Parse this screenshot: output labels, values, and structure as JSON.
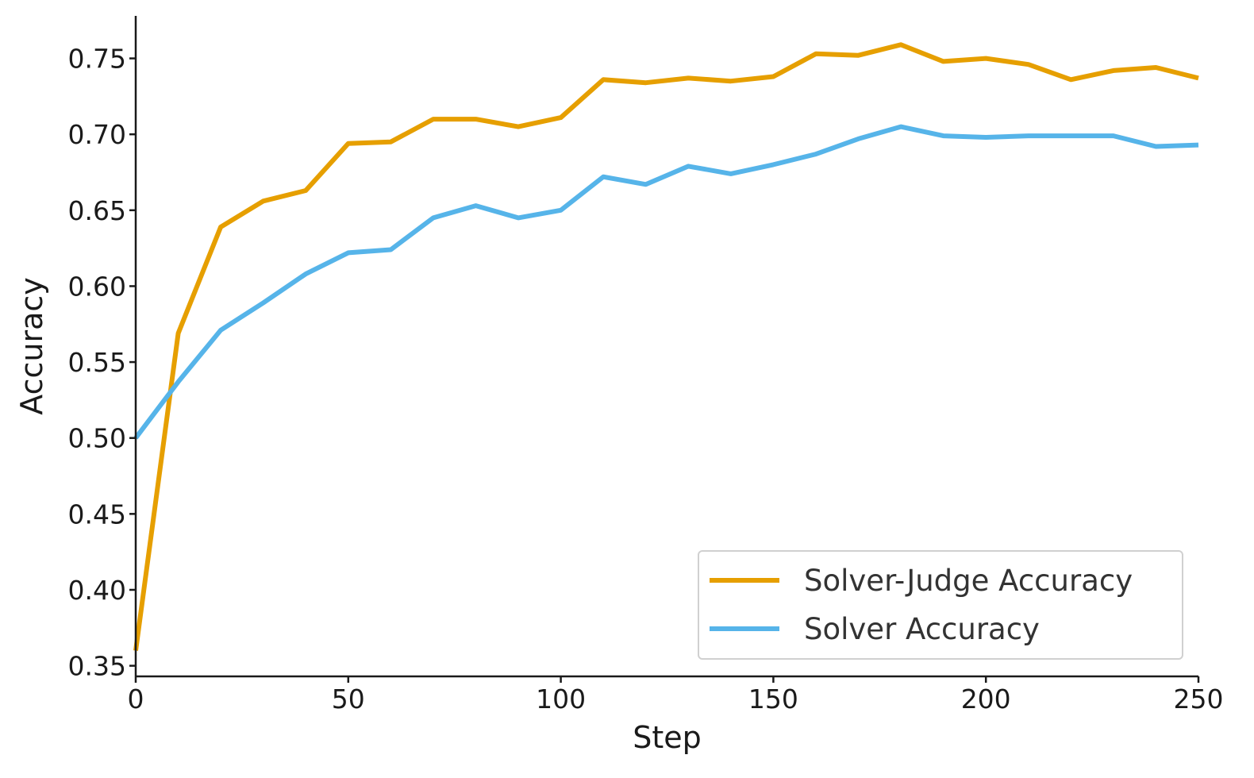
{
  "chart_data": {
    "type": "line",
    "title": "",
    "xlabel": "Step",
    "ylabel": "Accuracy",
    "xlim": [
      0,
      250
    ],
    "ylim": [
      0.343,
      0.778
    ],
    "xticks": [
      0,
      50,
      100,
      150,
      200,
      250
    ],
    "yticks": [
      0.35,
      0.4,
      0.45,
      0.5,
      0.55,
      0.6,
      0.65,
      0.7,
      0.75
    ],
    "ytick_labels": [
      "0.35",
      "0.40",
      "0.45",
      "0.50",
      "0.55",
      "0.60",
      "0.65",
      "0.70",
      "0.75"
    ],
    "grid": false,
    "legend_position": "lower-right",
    "x": [
      0,
      10,
      20,
      30,
      40,
      50,
      60,
      70,
      80,
      90,
      100,
      110,
      120,
      130,
      140,
      150,
      160,
      170,
      180,
      190,
      200,
      210,
      220,
      230,
      240,
      250
    ],
    "series": [
      {
        "name": "Solver-Judge Accuracy",
        "color": "#E69F00",
        "values": [
          0.36,
          0.569,
          0.639,
          0.656,
          0.663,
          0.694,
          0.695,
          0.71,
          0.71,
          0.705,
          0.711,
          0.736,
          0.734,
          0.737,
          0.735,
          0.738,
          0.753,
          0.752,
          0.759,
          0.748,
          0.75,
          0.746,
          0.736,
          0.742,
          0.744,
          0.737
        ]
      },
      {
        "name": "Solver Accuracy",
        "color": "#56B4E9",
        "values": [
          0.5,
          0.537,
          0.571,
          0.589,
          0.608,
          0.622,
          0.624,
          0.645,
          0.653,
          0.645,
          0.65,
          0.672,
          0.667,
          0.679,
          0.674,
          0.68,
          0.687,
          0.697,
          0.705,
          0.699,
          0.698,
          0.699,
          0.699,
          0.699,
          0.692,
          0.693
        ]
      }
    ]
  }
}
